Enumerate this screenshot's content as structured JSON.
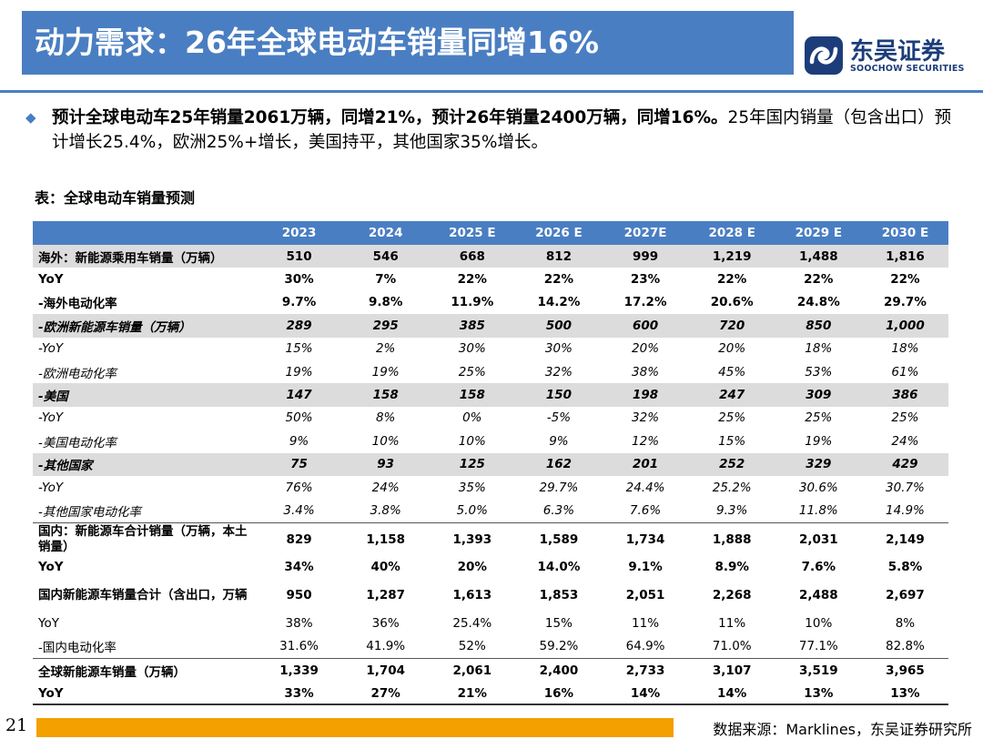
{
  "header": {
    "title": "动力需求：26年全球电动车销量同增16%",
    "logo_cn": "东吴证券",
    "logo_en": "SOOCHOW SECURITIES"
  },
  "summary": {
    "bold": "预计全球电动车25年销量2061万辆，同增21%，预计26年销量2400万辆，同增16%。",
    "normal": "25年国内销量（包含出口）预计增长25.4%，欧洲25%+增长，美国持平，其他国家35%增长。"
  },
  "table": {
    "caption": "表：全球电动车销量预测",
    "columns": [
      "",
      "2023",
      "2024",
      "2025 E",
      "2026 E",
      "2027E",
      "2028 E",
      "2029 E",
      "2030 E"
    ],
    "rows": [
      {
        "label": "海外：新能源乘用车销量（万辆）",
        "values": [
          "510",
          "546",
          "668",
          "812",
          "999",
          "1,219",
          "1,488",
          "1,816"
        ],
        "style": "bold shade"
      },
      {
        "label": "YoY",
        "values": [
          "30%",
          "7%",
          "22%",
          "22%",
          "23%",
          "22%",
          "22%",
          "22%"
        ],
        "style": "bold"
      },
      {
        "label": "-海外电动化率",
        "values": [
          "9.7%",
          "9.8%",
          "11.9%",
          "14.2%",
          "17.2%",
          "20.6%",
          "24.8%",
          "29.7%"
        ],
        "style": "bold"
      },
      {
        "label": "-欧洲新能源车销量（万辆）",
        "values": [
          "289",
          "295",
          "385",
          "500",
          "600",
          "720",
          "850",
          "1,000"
        ],
        "style": "bold italic shade"
      },
      {
        "label": "-YoY",
        "values": [
          "15%",
          "2%",
          "30%",
          "30%",
          "20%",
          "20%",
          "18%",
          "18%"
        ],
        "style": "italic"
      },
      {
        "label": "-欧洲电动化率",
        "values": [
          "19%",
          "19%",
          "25%",
          "32%",
          "38%",
          "45%",
          "53%",
          "61%"
        ],
        "style": "italic"
      },
      {
        "label": "-美国",
        "values": [
          "147",
          "158",
          "158",
          "150",
          "198",
          "247",
          "309",
          "386"
        ],
        "style": "bold italic shade"
      },
      {
        "label": "-YoY",
        "values": [
          "50%",
          "8%",
          "0%",
          "-5%",
          "32%",
          "25%",
          "25%",
          "25%"
        ],
        "style": "italic"
      },
      {
        "label": "-美国电动化率",
        "values": [
          "9%",
          "10%",
          "10%",
          "9%",
          "12%",
          "15%",
          "19%",
          "24%"
        ],
        "style": "italic"
      },
      {
        "label": "-其他国家",
        "values": [
          "75",
          "93",
          "125",
          "162",
          "201",
          "252",
          "329",
          "429"
        ],
        "style": "bold italic shade"
      },
      {
        "label": "-YoY",
        "values": [
          "76%",
          "24%",
          "35%",
          "29.7%",
          "24.4%",
          "25.2%",
          "30.6%",
          "30.7%"
        ],
        "style": "italic"
      },
      {
        "label": "-其他国家电动化率",
        "values": [
          "3.4%",
          "3.8%",
          "5.0%",
          "6.3%",
          "7.6%",
          "9.3%",
          "11.8%",
          "14.9%"
        ],
        "style": "italic"
      },
      {
        "label": "国内：新能源车合计销量（万辆，本土销量）",
        "values": [
          "829",
          "1,158",
          "1,393",
          "1,589",
          "1,734",
          "1,888",
          "2,031",
          "2,149"
        ],
        "style": "bold sep tall"
      },
      {
        "label": "YoY",
        "values": [
          "34%",
          "40%",
          "20%",
          "14.0%",
          "9.1%",
          "8.9%",
          "7.6%",
          "5.8%"
        ],
        "style": "bold"
      },
      {
        "label": "国内新能源车销量合计（含出口，万辆",
        "values": [
          "950",
          "1,287",
          "1,613",
          "1,853",
          "2,051",
          "2,268",
          "2,488",
          "2,697"
        ],
        "style": "bold tall"
      },
      {
        "label": "YoY",
        "values": [
          "38%",
          "36%",
          "25.4%",
          "15%",
          "11%",
          "11%",
          "10%",
          "8%"
        ],
        "style": ""
      },
      {
        "label": "-国内电动化率",
        "values": [
          "31.6%",
          "41.9%",
          "52%",
          "59.2%",
          "64.9%",
          "71.0%",
          "77.1%",
          "82.8%"
        ],
        "style": ""
      },
      {
        "label": "全球新能源车销量（万辆）",
        "values": [
          "1,339",
          "1,704",
          "2,061",
          "2,400",
          "2,733",
          "3,107",
          "3,519",
          "3,965"
        ],
        "style": "bold sep"
      },
      {
        "label": "YoY",
        "values": [
          "33%",
          "27%",
          "21%",
          "16%",
          "14%",
          "14%",
          "13%",
          "13%"
        ],
        "style": "bold"
      }
    ]
  },
  "footer": {
    "page_number": "21",
    "source": "数据来源：Marklines，东吴证券研究所"
  }
}
